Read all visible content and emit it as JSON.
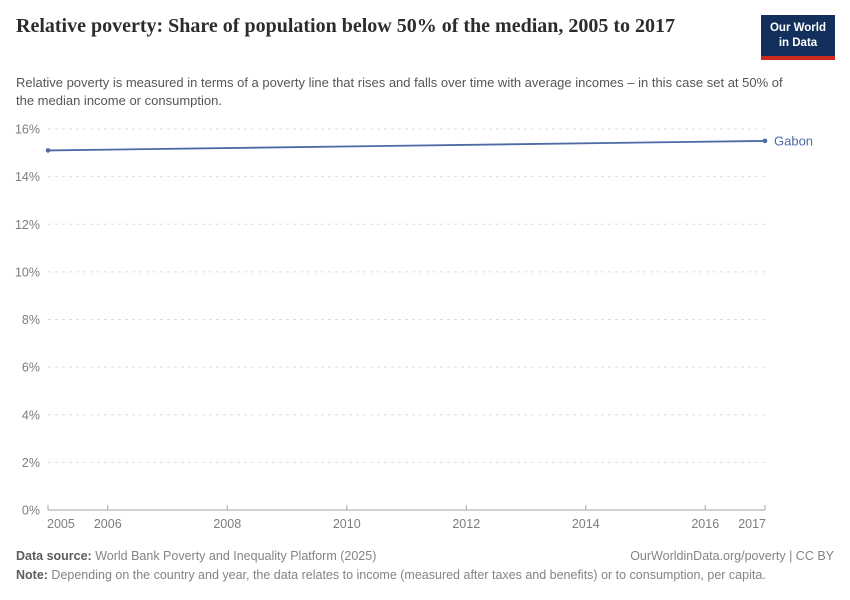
{
  "header": {
    "title": "Relative poverty: Share of population below 50% of the median, 2005 to 2017",
    "subtitle": "Relative poverty is measured in terms of a poverty line that rises and falls over time with average incomes – in this case set at 50% of the median income or consumption."
  },
  "logo": {
    "line1": "Our World",
    "line2": "in Data"
  },
  "chart_data": {
    "type": "line",
    "title": "Relative poverty: Share of population below 50% of the median, 2005 to 2017",
    "xlabel": "",
    "ylabel": "",
    "xlim": [
      2005,
      2017
    ],
    "ylim": [
      0,
      16
    ],
    "xticks": [
      2005,
      2006,
      2008,
      2010,
      2012,
      2014,
      2016,
      2017
    ],
    "yticks": [
      0,
      2,
      4,
      6,
      8,
      10,
      12,
      14,
      16
    ],
    "ytick_suffix": "%",
    "grid": "horizontal-dashed",
    "legend_position": "end-of-line-label",
    "series": [
      {
        "name": "Gabon",
        "color": "#4C6BA5",
        "points": [
          [
            2005,
            15.1
          ],
          [
            2017,
            15.5
          ]
        ]
      }
    ]
  },
  "footer": {
    "datasource_label": "Data source:",
    "datasource_text": " World Bank Poverty and Inequality Platform (2025)",
    "link_text": "OurWorldinData.org/poverty | CC BY",
    "note_label": "Note:",
    "note_text": " Depending on the country and year, the data relates to income (measured after taxes and benefits) or to consumption, per capita."
  },
  "colors": {
    "accent_line": "#4C6BA5",
    "logo_bg": "#12305b",
    "logo_stripe": "#cc2a1d",
    "gridline": "#dedede",
    "axis": "#a3a3a3",
    "tick_label": "#7d7d7d"
  }
}
